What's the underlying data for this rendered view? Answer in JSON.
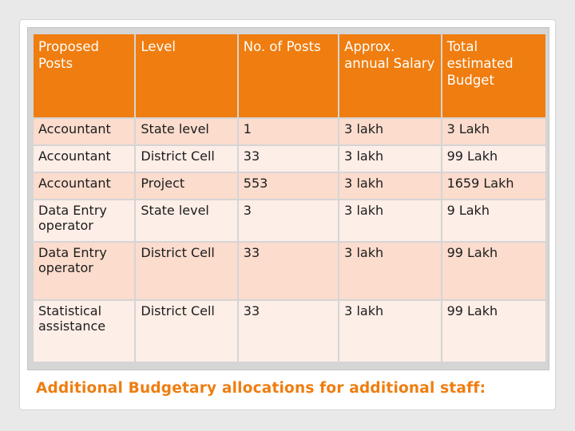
{
  "table": {
    "headers": [
      "Proposed Posts",
      "Level",
      "No. of Posts",
      "Approx. annual Salary",
      "Total estimated Budget"
    ],
    "rows": [
      [
        "Accountant",
        "State level",
        "1",
        "3 lakh",
        "3 Lakh"
      ],
      [
        "Accountant",
        "District Cell",
        "33",
        "3 lakh",
        "99 Lakh"
      ],
      [
        "Accountant",
        "Project",
        "553",
        "3 lakh",
        "1659 Lakh"
      ],
      [
        "Data Entry operator",
        "State level",
        "3",
        "3 lakh",
        "9 Lakh"
      ],
      [
        "Data Entry operator",
        "District Cell",
        "33",
        "3 lakh",
        "99 Lakh"
      ],
      [
        "Statistical assistance",
        "District Cell",
        "33",
        "3 lakh",
        "99 Lakh"
      ]
    ]
  },
  "caption": "Additional Budgetary allocations for additional staff:",
  "colors": {
    "header_bg": "#ef7d0f",
    "row_bg": "#fbdccd",
    "row_alt_bg": "#fdeee7",
    "caption_color": "#ef7d0f"
  }
}
